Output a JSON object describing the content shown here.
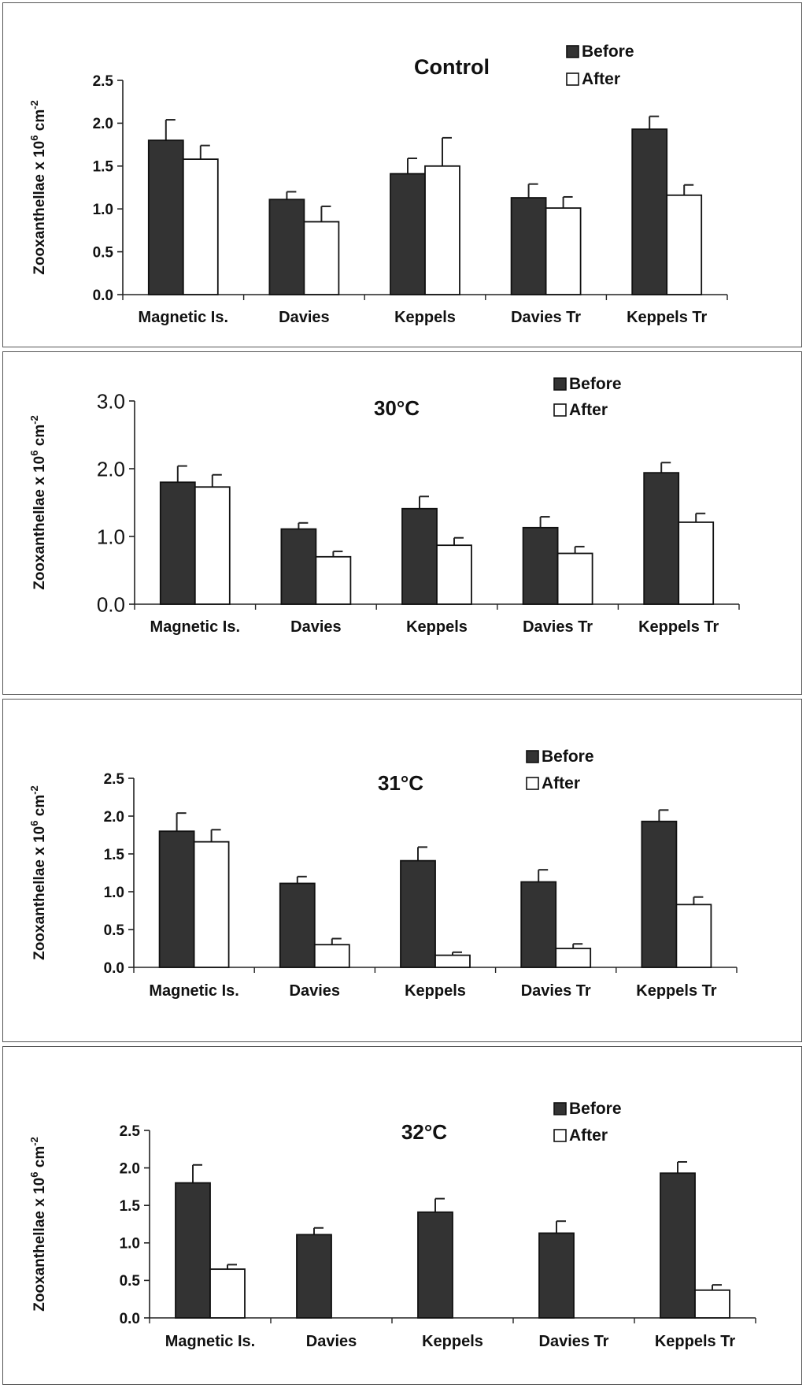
{
  "chart_data": [
    {
      "type": "bar",
      "title": "Control",
      "ylabel": "Zooxanthellae x 10^6 cm^-2",
      "ylim": [
        0,
        2.5
      ],
      "yticks": [
        "0.0",
        "0.5",
        "1.0",
        "1.5",
        "2.0",
        "2.5"
      ],
      "ytick_values": [
        0,
        0.5,
        1.0,
        1.5,
        2.0,
        2.5
      ],
      "categories": [
        "Magnetic Is.",
        "Davies",
        "Keppels",
        "Davies Tr",
        "Keppels Tr"
      ],
      "series": [
        {
          "name": "Before",
          "color": "#333333",
          "values": [
            1.8,
            1.11,
            1.41,
            1.13,
            1.93
          ],
          "errors": [
            0.24,
            0.09,
            0.18,
            0.16,
            0.15
          ]
        },
        {
          "name": "After",
          "color": "#ffffff",
          "values": [
            1.58,
            0.85,
            1.5,
            1.01,
            1.16
          ],
          "errors": [
            0.16,
            0.18,
            0.33,
            0.13,
            0.12
          ]
        }
      ],
      "legend": "top-right"
    },
    {
      "type": "bar",
      "title": "30°C",
      "ylabel": "Zooxanthellae x 10^6 cm^-2",
      "ylim": [
        0,
        3.0
      ],
      "yticks": [
        "0.0",
        "1.0",
        "2.0",
        "3.0"
      ],
      "ytick_values": [
        0,
        1.0,
        2.0,
        3.0
      ],
      "categories": [
        "Magnetic Is.",
        "Davies",
        "Keppels",
        "Davies Tr",
        "Keppels Tr"
      ],
      "series": [
        {
          "name": "Before",
          "color": "#333333",
          "values": [
            1.8,
            1.11,
            1.41,
            1.13,
            1.94
          ],
          "errors": [
            0.24,
            0.09,
            0.18,
            0.16,
            0.15
          ]
        },
        {
          "name": "After",
          "color": "#ffffff",
          "values": [
            1.73,
            0.7,
            0.87,
            0.75,
            1.21
          ],
          "errors": [
            0.18,
            0.08,
            0.11,
            0.1,
            0.13
          ]
        }
      ],
      "legend": "top-right"
    },
    {
      "type": "bar",
      "title": "31°C",
      "ylabel": "Zooxanthellae x 10^6 cm^-2",
      "ylim": [
        0,
        2.5
      ],
      "yticks": [
        "0.0",
        "0.5",
        "1.0",
        "1.5",
        "2.0",
        "2.5"
      ],
      "ytick_values": [
        0,
        0.5,
        1.0,
        1.5,
        2.0,
        2.5
      ],
      "categories": [
        "Magnetic Is.",
        "Davies",
        "Keppels",
        "Davies Tr",
        "Keppels Tr"
      ],
      "series": [
        {
          "name": "Before",
          "color": "#333333",
          "values": [
            1.8,
            1.11,
            1.41,
            1.13,
            1.93
          ],
          "errors": [
            0.24,
            0.09,
            0.18,
            0.16,
            0.15
          ]
        },
        {
          "name": "After",
          "color": "#ffffff",
          "values": [
            1.66,
            0.3,
            0.16,
            0.25,
            0.83
          ],
          "errors": [
            0.16,
            0.08,
            0.04,
            0.06,
            0.1
          ]
        }
      ],
      "legend": "top-right"
    },
    {
      "type": "bar",
      "title": "32°C",
      "ylabel": "Zooxanthellae x 10^6 cm^-2",
      "ylim": [
        0,
        2.5
      ],
      "yticks": [
        "0.0",
        "0.5",
        "1.0",
        "1.5",
        "2.0",
        "2.5"
      ],
      "ytick_values": [
        0,
        0.5,
        1.0,
        1.5,
        2.0,
        2.5
      ],
      "categories": [
        "Magnetic Is.",
        "Davies",
        "Keppels",
        "Davies Tr",
        "Keppels Tr"
      ],
      "series": [
        {
          "name": "Before",
          "color": "#333333",
          "values": [
            1.8,
            1.11,
            1.41,
            1.13,
            1.93
          ],
          "errors": [
            0.24,
            0.09,
            0.18,
            0.16,
            0.15
          ]
        },
        {
          "name": "After",
          "color": "#ffffff",
          "values": [
            0.65,
            0.0,
            0.0,
            0.0,
            0.37
          ],
          "errors": [
            0.06,
            0.0,
            0.0,
            0.0,
            0.07
          ]
        }
      ],
      "legend": "top-right"
    }
  ]
}
